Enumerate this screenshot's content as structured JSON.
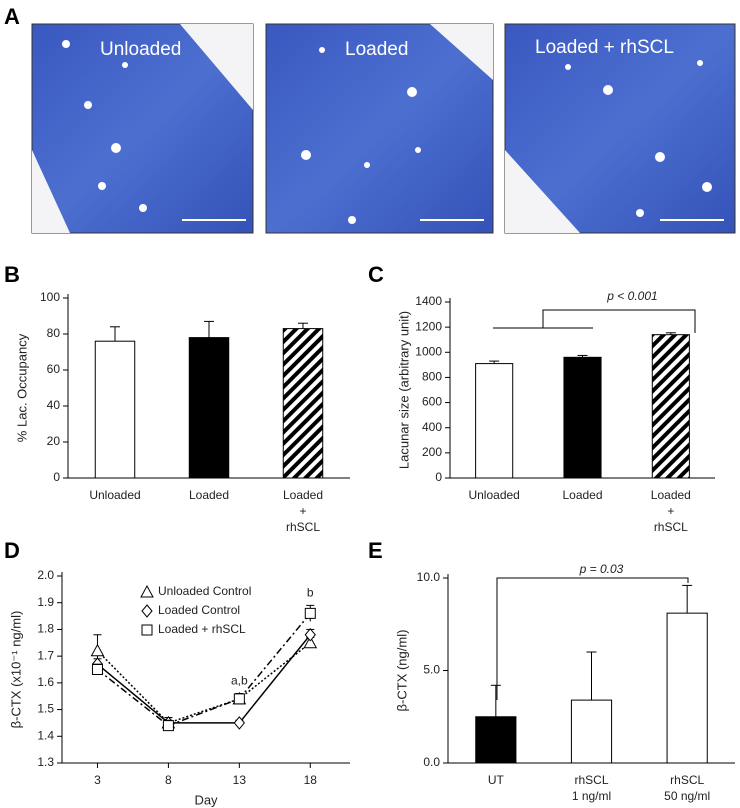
{
  "panel_a": {
    "letter": "A",
    "captions": [
      "Unloaded",
      "Loaded",
      "Loaded + rhSCL"
    ]
  },
  "chart_data": [
    {
      "type": "bar",
      "panel": "B",
      "ylabel": "% Lac. Occupancy",
      "categories": [
        "Unloaded",
        "Loaded",
        "Loaded\n+\nrhSCL"
      ],
      "values": [
        76,
        78,
        83
      ],
      "errors": [
        8,
        9,
        3
      ],
      "colors": [
        "#ffffff",
        "#000000",
        "hatch"
      ],
      "ylim": [
        0,
        100
      ],
      "yticks": [
        0,
        20,
        40,
        60,
        80,
        100
      ]
    },
    {
      "type": "bar",
      "panel": "C",
      "ylabel": "Lacunar size (arbitrary unit)",
      "categories": [
        "Unloaded",
        "Loaded",
        "Loaded\n+\nrhSCL"
      ],
      "values": [
        910,
        960,
        1140
      ],
      "errors": [
        20,
        15,
        15
      ],
      "colors": [
        "#ffffff",
        "#000000",
        "hatch"
      ],
      "ylim": [
        0,
        1400
      ],
      "yticks": [
        0,
        200,
        400,
        600,
        800,
        1000,
        1200,
        1400
      ],
      "annotation": "p < 0.001"
    },
    {
      "type": "line",
      "panel": "D",
      "ylabel": "β-CTX (x10⁻¹ ng/ml)",
      "xlabel": "Day",
      "x": [
        3,
        8,
        13,
        18
      ],
      "xlim": [
        0.5,
        20.8
      ],
      "xticks": [
        3,
        8,
        13,
        18
      ],
      "ylim": [
        1.3,
        2.0
      ],
      "yticks": [
        1.3,
        1.4,
        1.5,
        1.6,
        1.7,
        1.8,
        1.9,
        {
          "value": 2.0,
          "label": "2.0"
        }
      ],
      "legend": "top-left",
      "series": [
        {
          "name": "Unloaded Control",
          "color": "#000000",
          "marker": "triangle",
          "dash": "dotted",
          "values": [
            1.72,
            1.45,
            1.54,
            1.75
          ],
          "errors": [
            0.06,
            0.02,
            0.01,
            0.02
          ]
        },
        {
          "name": "Loaded Control",
          "color": "#000000",
          "marker": "diamond",
          "dash": "solid",
          "values": [
            1.67,
            1.45,
            1.45,
            1.78
          ],
          "errors": [
            0.02,
            0.02,
            0.01,
            0.02
          ]
        },
        {
          "name": "Loaded + rhSCL",
          "color": "#000000",
          "marker": "square",
          "dash": "dashdot",
          "values": [
            1.65,
            1.44,
            1.54,
            1.86
          ],
          "errors": [
            0.02,
            0.02,
            0.02,
            0.03
          ]
        }
      ],
      "annotations": [
        {
          "text": "a,b",
          "x": 13
        },
        {
          "text": "b",
          "x": 18
        }
      ]
    },
    {
      "type": "bar",
      "panel": "E",
      "ylabel": "β-CTX (ng/ml)",
      "categories": [
        "UT",
        "rhSCL\n1 ng/ml",
        "rhSCL\n50 ng/ml"
      ],
      "values": [
        2.5,
        3.4,
        8.1
      ],
      "errors": [
        1.7,
        2.6,
        1.5
      ],
      "colors": [
        "#000000",
        "#ffffff",
        "#ffffff"
      ],
      "ylim": [
        0,
        10
      ],
      "yticks": [
        {
          "value": 0,
          "label": "0.0"
        },
        {
          "value": 5,
          "label": "5.0"
        },
        {
          "value": 10,
          "label": "10.0"
        }
      ],
      "annotation": "p = 0.03"
    }
  ]
}
